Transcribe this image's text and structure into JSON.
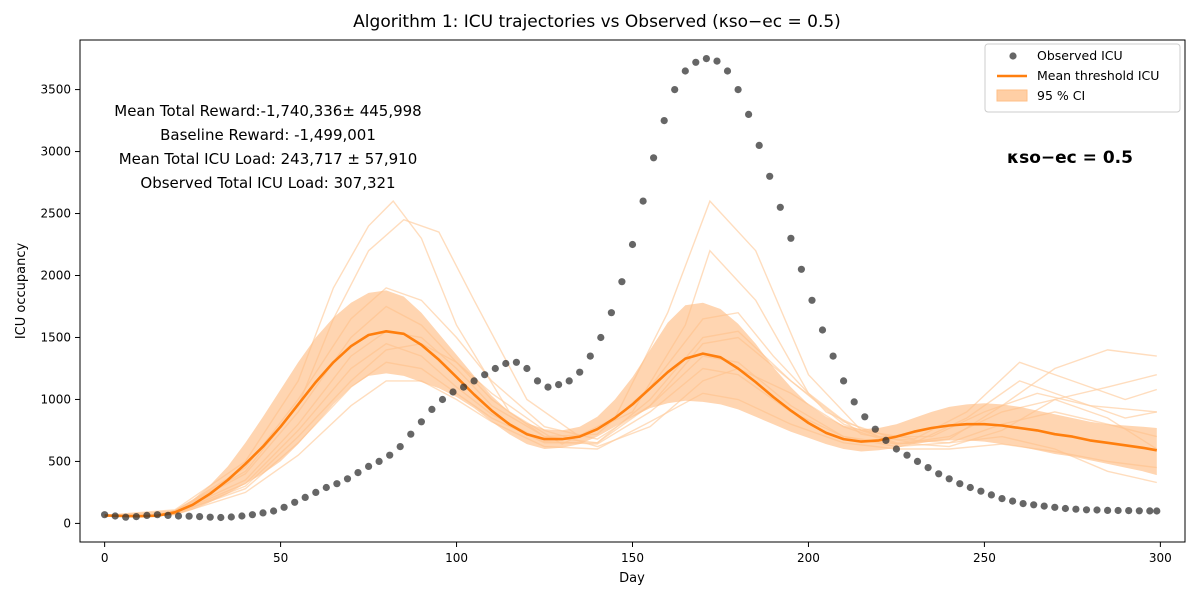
{
  "chart_data": {
    "type": "line",
    "title": "Algorithm 1: ICU trajectories vs Observed (κso−ec = 0.5)",
    "xlabel": "Day",
    "ylabel": "ICU occupancy",
    "xlim": [
      -7,
      307
    ],
    "ylim": [
      -150,
      3900
    ],
    "x_ticks": [
      0,
      50,
      100,
      150,
      200,
      250,
      300
    ],
    "y_ticks": [
      0,
      500,
      1000,
      1500,
      2000,
      2500,
      3000,
      3500
    ],
    "legend": {
      "position": "top-right",
      "entries": [
        "Observed ICU",
        "Mean threshold ICU",
        "95 % CI"
      ]
    },
    "annotations": [
      "Mean Total Reward:-1,740,336± 445,998",
      "Baseline Reward: -1,499,001",
      "Mean Total ICU Load: 243,717 ± 57,910",
      "Observed Total ICU Load: 307,321"
    ],
    "kappa_label": "κso−ec = 0.5",
    "colors": {
      "observed": "#333333",
      "mean": "#ff7f0e",
      "ci": "#ffbf87",
      "trajectory": "#ffcfa3"
    },
    "series": [
      {
        "name": "Observed ICU",
        "kind": "scatter",
        "x": [
          0,
          3,
          6,
          9,
          12,
          15,
          18,
          21,
          24,
          27,
          30,
          33,
          36,
          39,
          42,
          45,
          48,
          51,
          54,
          57,
          60,
          63,
          66,
          69,
          72,
          75,
          78,
          81,
          84,
          87,
          90,
          93,
          96,
          99,
          102,
          105,
          108,
          111,
          114,
          117,
          120,
          123,
          126,
          129,
          132,
          135,
          138,
          141,
          144,
          147,
          150,
          153,
          156,
          159,
          162,
          165,
          168,
          171,
          174,
          177,
          180,
          183,
          186,
          189,
          192,
          195,
          198,
          201,
          204,
          207,
          210,
          213,
          216,
          219,
          222,
          225,
          228,
          231,
          234,
          237,
          240,
          243,
          246,
          249,
          252,
          255,
          258,
          261,
          264,
          267,
          270,
          273,
          276,
          279,
          282,
          285,
          288,
          291,
          294,
          297,
          299
        ],
        "y": [
          70,
          60,
          50,
          55,
          65,
          70,
          65,
          60,
          58,
          55,
          50,
          48,
          52,
          60,
          70,
          85,
          100,
          130,
          170,
          210,
          250,
          290,
          320,
          360,
          410,
          460,
          500,
          550,
          620,
          720,
          820,
          920,
          1000,
          1060,
          1100,
          1150,
          1200,
          1250,
          1290,
          1300,
          1250,
          1150,
          1100,
          1120,
          1150,
          1220,
          1350,
          1500,
          1700,
          1950,
          2250,
          2600,
          2950,
          3250,
          3500,
          3650,
          3720,
          3750,
          3730,
          3650,
          3500,
          3300,
          3050,
          2800,
          2550,
          2300,
          2050,
          1800,
          1560,
          1350,
          1150,
          980,
          860,
          760,
          670,
          600,
          550,
          500,
          450,
          400,
          360,
          320,
          290,
          260,
          230,
          200,
          180,
          160,
          150,
          140,
          130,
          120,
          115,
          110,
          108,
          105,
          104,
          103,
          102,
          101,
          100
        ]
      },
      {
        "name": "Mean threshold ICU",
        "kind": "line",
        "x": [
          0,
          5,
          10,
          15,
          20,
          25,
          30,
          35,
          40,
          45,
          50,
          55,
          60,
          65,
          70,
          75,
          80,
          85,
          90,
          95,
          100,
          105,
          110,
          115,
          120,
          125,
          130,
          135,
          140,
          145,
          150,
          155,
          160,
          165,
          170,
          175,
          180,
          185,
          190,
          195,
          200,
          205,
          210,
          215,
          220,
          225,
          230,
          235,
          240,
          245,
          250,
          255,
          260,
          265,
          270,
          275,
          280,
          285,
          290,
          295,
          299
        ],
        "y": [
          65,
          60,
          58,
          62,
          90,
          150,
          240,
          350,
          480,
          620,
          780,
          960,
          1140,
          1300,
          1430,
          1520,
          1550,
          1530,
          1440,
          1320,
          1180,
          1040,
          910,
          800,
          720,
          680,
          680,
          700,
          760,
          850,
          960,
          1090,
          1220,
          1330,
          1370,
          1340,
          1250,
          1140,
          1020,
          910,
          810,
          730,
          680,
          660,
          670,
          700,
          740,
          770,
          790,
          800,
          800,
          790,
          770,
          750,
          720,
          700,
          670,
          650,
          630,
          610,
          590
        ]
      },
      {
        "name": "95 % CI upper",
        "kind": "band-upper",
        "x": [
          0,
          5,
          10,
          15,
          20,
          25,
          30,
          35,
          40,
          45,
          50,
          55,
          60,
          65,
          70,
          75,
          80,
          85,
          90,
          95,
          100,
          105,
          110,
          115,
          120,
          125,
          130,
          135,
          140,
          145,
          150,
          155,
          160,
          165,
          170,
          175,
          180,
          185,
          190,
          195,
          200,
          205,
          210,
          215,
          220,
          225,
          230,
          235,
          240,
          245,
          250,
          255,
          260,
          265,
          270,
          275,
          280,
          285,
          290,
          295,
          299
        ],
        "y": [
          70,
          66,
          64,
          70,
          110,
          190,
          310,
          460,
          650,
          860,
          1080,
          1300,
          1500,
          1660,
          1780,
          1860,
          1880,
          1830,
          1700,
          1530,
          1360,
          1190,
          1030,
          900,
          810,
          760,
          750,
          780,
          860,
          1000,
          1180,
          1400,
          1620,
          1760,
          1780,
          1730,
          1610,
          1450,
          1260,
          1100,
          960,
          860,
          790,
          760,
          770,
          800,
          850,
          900,
          940,
          960,
          970,
          960,
          940,
          910,
          880,
          850,
          820,
          800,
          790,
          780,
          770
        ]
      },
      {
        "name": "95 % CI lower",
        "kind": "band-lower",
        "x": [
          0,
          5,
          10,
          15,
          20,
          25,
          30,
          35,
          40,
          45,
          50,
          55,
          60,
          65,
          70,
          75,
          80,
          85,
          90,
          95,
          100,
          105,
          110,
          115,
          120,
          125,
          130,
          135,
          140,
          145,
          150,
          155,
          160,
          165,
          170,
          175,
          180,
          185,
          190,
          195,
          200,
          205,
          210,
          215,
          220,
          225,
          230,
          235,
          240,
          245,
          250,
          255,
          260,
          265,
          270,
          275,
          280,
          285,
          290,
          295,
          299
        ],
        "y": [
          60,
          54,
          52,
          55,
          70,
          110,
          170,
          240,
          320,
          400,
          500,
          640,
          800,
          960,
          1100,
          1190,
          1210,
          1190,
          1140,
          1090,
          1020,
          930,
          820,
          720,
          640,
          600,
          610,
          640,
          700,
          780,
          860,
          930,
          970,
          990,
          980,
          960,
          920,
          860,
          800,
          740,
          690,
          640,
          600,
          580,
          590,
          610,
          640,
          660,
          670,
          670,
          660,
          640,
          620,
          590,
          560,
          540,
          510,
          480,
          450,
          420,
          390
        ]
      },
      {
        "name": "trajectory 1",
        "kind": "faint",
        "x": [
          0,
          20,
          40,
          55,
          65,
          75,
          82,
          90,
          100,
          115,
          130,
          145,
          160,
          172,
          185,
          200,
          215,
          230,
          245,
          260,
          275,
          290,
          299
        ],
        "y": [
          65,
          110,
          500,
          1150,
          1900,
          2400,
          2600,
          2300,
          1600,
          900,
          640,
          850,
          1700,
          2600,
          2200,
          1200,
          750,
          680,
          900,
          1300,
          1150,
          1000,
          1080
        ]
      },
      {
        "name": "trajectory 2",
        "kind": "faint",
        "x": [
          0,
          20,
          40,
          55,
          65,
          75,
          85,
          95,
          105,
          120,
          135,
          150,
          165,
          172,
          185,
          200,
          215,
          230,
          245,
          260,
          275,
          290,
          299
        ],
        "y": [
          62,
          100,
          420,
          950,
          1650,
          2200,
          2450,
          2350,
          1800,
          1000,
          700,
          900,
          1600,
          2200,
          1800,
          1050,
          720,
          650,
          850,
          1150,
          1000,
          850,
          900
        ]
      },
      {
        "name": "trajectory 3",
        "kind": "faint",
        "x": [
          0,
          20,
          40,
          55,
          70,
          80,
          90,
          100,
          110,
          125,
          140,
          155,
          170,
          180,
          190,
          205,
          220,
          235,
          250,
          265,
          280,
          299
        ],
        "y": [
          60,
          90,
          350,
          800,
          1350,
          1550,
          1500,
          1250,
          950,
          700,
          720,
          1100,
          1650,
          1700,
          1350,
          900,
          700,
          700,
          900,
          1050,
          950,
          900
        ]
      },
      {
        "name": "trajectory 4",
        "kind": "faint",
        "x": [
          0,
          20,
          40,
          55,
          70,
          80,
          90,
          100,
          110,
          125,
          140,
          155,
          170,
          180,
          195,
          210,
          225,
          240,
          255,
          270,
          285,
          299
        ],
        "y": [
          60,
          80,
          280,
          650,
          1100,
          1300,
          1250,
          1050,
          850,
          650,
          650,
          950,
          1350,
          1300,
          950,
          700,
          620,
          650,
          800,
          900,
          800,
          700
        ]
      },
      {
        "name": "trajectory 5",
        "kind": "faint",
        "x": [
          0,
          20,
          40,
          55,
          70,
          80,
          90,
          100,
          110,
          125,
          140,
          155,
          170,
          180,
          195,
          210,
          225,
          240,
          255,
          270,
          285,
          299
        ],
        "y": [
          62,
          95,
          400,
          900,
          1500,
          1750,
          1600,
          1300,
          1000,
          700,
          650,
          1000,
          1500,
          1550,
          1150,
          800,
          650,
          620,
          750,
          1000,
          1100,
          1200
        ]
      },
      {
        "name": "trajectory 6",
        "kind": "faint",
        "x": [
          0,
          20,
          40,
          55,
          70,
          80,
          90,
          100,
          110,
          125,
          140,
          155,
          170,
          180,
          195,
          210,
          225,
          240,
          255,
          270,
          285,
          299
        ],
        "y": [
          58,
          70,
          250,
          550,
          950,
          1150,
          1150,
          1000,
          820,
          620,
          600,
          820,
          1050,
          1000,
          800,
          650,
          600,
          600,
          640,
          580,
          500,
          450
        ]
      },
      {
        "name": "trajectory 7",
        "kind": "faint",
        "x": [
          0,
          20,
          40,
          55,
          70,
          80,
          90,
          100,
          110,
          125,
          140,
          155,
          170,
          180,
          195,
          210,
          225,
          240,
          255,
          270,
          285,
          299
        ],
        "y": [
          61,
          85,
          320,
          750,
          1250,
          1450,
          1350,
          1100,
          880,
          660,
          640,
          900,
          1250,
          1200,
          900,
          700,
          640,
          700,
          900,
          1000,
          850,
          600
        ]
      },
      {
        "name": "trajectory 8",
        "kind": "faint",
        "x": [
          0,
          20,
          40,
          55,
          70,
          80,
          90,
          100,
          110,
          125,
          140,
          155,
          170,
          180,
          195,
          210,
          225,
          240,
          255,
          270,
          285,
          299
        ],
        "y": [
          60,
          75,
          300,
          700,
          1150,
          1400,
          1450,
          1300,
          1050,
          750,
          620,
          780,
          1150,
          1250,
          1050,
          780,
          640,
          680,
          950,
          1250,
          1400,
          1350
        ]
      },
      {
        "name": "trajectory 9",
        "kind": "faint",
        "x": [
          0,
          20,
          40,
          55,
          70,
          80,
          90,
          100,
          110,
          125,
          140,
          155,
          170,
          180,
          195,
          210,
          225,
          240,
          255,
          270,
          285,
          299
        ],
        "y": [
          63,
          100,
          450,
          1000,
          1650,
          1900,
          1800,
          1500,
          1150,
          780,
          680,
          950,
          1450,
          1500,
          1150,
          820,
          680,
          650,
          700,
          600,
          420,
          330
        ]
      }
    ]
  }
}
